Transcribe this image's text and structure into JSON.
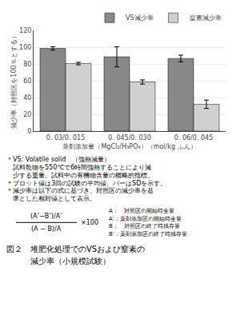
{
  "chart_data": {
    "type": "bar",
    "categories": [
      "0. 03/0. 015",
      "0. 045/0. 030",
      "0. 06/0. 045"
    ],
    "series": [
      {
        "name": "VS減少率",
        "color": "#888888",
        "values": [
          98.5,
          88.5,
          86.5
        ],
        "errors": [
          2.0,
          12.0,
          4.0
        ]
      },
      {
        "name": "窒素減少率",
        "color": "#d0d0d0",
        "values": [
          80.5,
          58.5,
          32.0
        ],
        "errors": [
          1.5,
          2.5,
          5.0
        ]
      }
    ],
    "ylabel": "減少率（対照区を100％とする）",
    "xlabel": "薬剤添加量（MgCl₂/H₃PO₄）（mol/kg ふん）",
    "ylim": [
      0,
      120
    ],
    "yticks": [
      0,
      20,
      40,
      60,
      80,
      100,
      120
    ],
    "grid": true,
    "legend": "top right",
    "notes": [
      "＊VS: Volatile solid　（強熱減量）",
      "　試料乾物を550℃で6時間強熱することにより減",
      "　少する重量。試料中の有機物含量の概略的指標。",
      "＊プロット値は3回の試験の平均値、バーはSDを示す。",
      "＊減少率は以下の式に基づき、対照区の減少率を基",
      "　準とした相対値として表示。"
    ],
    "formula": {
      "numerator": "(A’−B’)/A’",
      "denominator": "(A − B)/A",
      "multiplier": "×100"
    },
    "formula_legend": [
      "A：　対照区の開始時全量",
      "A’：薬剤添加区の開始時全量",
      "B：　対照区の終了時残存量",
      "B’：薬剤添加区の終了時残存量"
    ],
    "caption": [
      "図２　堆肥化処理でのVSおよび窒素の",
      "　　　減少率（小規模試験）"
    ]
  }
}
